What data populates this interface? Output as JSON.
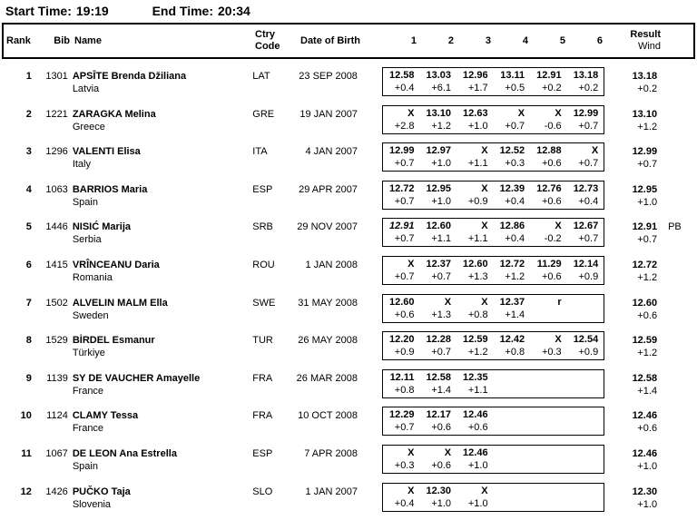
{
  "times": {
    "start_label": "Start Time:",
    "start_value": "19:19",
    "end_label": "End Time:",
    "end_value": "20:34"
  },
  "table": {
    "headers": {
      "rank": "Rank",
      "bib": "Bib",
      "name": "Name",
      "ctry_line1": "Ctry",
      "ctry_line2": "Code",
      "dob": "Date of Birth",
      "attempts": [
        "1",
        "2",
        "3",
        "4",
        "5",
        "6"
      ],
      "result": "Result",
      "wind": "Wind"
    },
    "rows": [
      {
        "rank": "1",
        "bib": "1301",
        "name": "APSĪTE Brenda Džiliana",
        "country": "Latvia",
        "code": "LAT",
        "dob": "23 SEP 2008",
        "attempts": [
          {
            "mark": "12.58",
            "wind": "+0.4"
          },
          {
            "mark": "13.03",
            "wind": "+6.1"
          },
          {
            "mark": "12.96",
            "wind": "+1.7"
          },
          {
            "mark": "13.11",
            "wind": "+0.5"
          },
          {
            "mark": "12.91",
            "wind": "+0.2"
          },
          {
            "mark": "13.18",
            "wind": "+0.2"
          }
        ],
        "result": "13.18",
        "result_wind": "+0.2",
        "remark": ""
      },
      {
        "rank": "2",
        "bib": "1221",
        "name": "ZARAGKA Melina",
        "country": "Greece",
        "code": "GRE",
        "dob": "19 JAN 2007",
        "attempts": [
          {
            "mark": "X",
            "wind": "+2.8"
          },
          {
            "mark": "13.10",
            "wind": "+1.2"
          },
          {
            "mark": "12.63",
            "wind": "+1.0"
          },
          {
            "mark": "X",
            "wind": "+0.7"
          },
          {
            "mark": "X",
            "wind": "-0.6"
          },
          {
            "mark": "12.99",
            "wind": "+0.7"
          }
        ],
        "result": "13.10",
        "result_wind": "+1.2",
        "remark": ""
      },
      {
        "rank": "3",
        "bib": "1296",
        "name": "VALENTI Elisa",
        "country": "Italy",
        "code": "ITA",
        "dob": "4 JAN 2007",
        "attempts": [
          {
            "mark": "12.99",
            "wind": "+0.7"
          },
          {
            "mark": "12.97",
            "wind": "+1.0"
          },
          {
            "mark": "X",
            "wind": "+1.1"
          },
          {
            "mark": "12.52",
            "wind": "+0.3"
          },
          {
            "mark": "12.88",
            "wind": "+0.6"
          },
          {
            "mark": "X",
            "wind": "+0.7"
          }
        ],
        "result": "12.99",
        "result_wind": "+0.7",
        "remark": ""
      },
      {
        "rank": "4",
        "bib": "1063",
        "name": "BARRIOS Maria",
        "country": "Spain",
        "code": "ESP",
        "dob": "29 APR 2007",
        "attempts": [
          {
            "mark": "12.72",
            "wind": "+0.7"
          },
          {
            "mark": "12.95",
            "wind": "+1.0"
          },
          {
            "mark": "X",
            "wind": "+0.9"
          },
          {
            "mark": "12.39",
            "wind": "+0.4"
          },
          {
            "mark": "12.76",
            "wind": "+0.6"
          },
          {
            "mark": "12.73",
            "wind": "+0.4"
          }
        ],
        "result": "12.95",
        "result_wind": "+1.0",
        "remark": ""
      },
      {
        "rank": "5",
        "bib": "1446",
        "name": "NISIĆ Marija",
        "country": "Serbia",
        "code": "SRB",
        "dob": "29 NOV 2007",
        "attempts": [
          {
            "mark": "12.91",
            "wind": "+0.7",
            "italic": true
          },
          {
            "mark": "12.60",
            "wind": "+1.1"
          },
          {
            "mark": "X",
            "wind": "+1.1"
          },
          {
            "mark": "12.86",
            "wind": "+0.4"
          },
          {
            "mark": "X",
            "wind": "-0.2"
          },
          {
            "mark": "12.67",
            "wind": "+0.7"
          }
        ],
        "result": "12.91",
        "result_wind": "+0.7",
        "remark": "PB"
      },
      {
        "rank": "6",
        "bib": "1415",
        "name": "VRÎNCEANU Daria",
        "country": "Romania",
        "code": "ROU",
        "dob": "1 JAN 2008",
        "attempts": [
          {
            "mark": "X",
            "wind": "+0.7"
          },
          {
            "mark": "12.37",
            "wind": "+0.7"
          },
          {
            "mark": "12.60",
            "wind": "+1.3"
          },
          {
            "mark": "12.72",
            "wind": "+1.2"
          },
          {
            "mark": "11.29",
            "wind": "+0.6"
          },
          {
            "mark": "12.14",
            "wind": "+0.9"
          }
        ],
        "result": "12.72",
        "result_wind": "+1.2",
        "remark": ""
      },
      {
        "rank": "7",
        "bib": "1502",
        "name": "ALVELIN MALM Ella",
        "country": "Sweden",
        "code": "SWE",
        "dob": "31 MAY 2008",
        "attempts": [
          {
            "mark": "12.60",
            "wind": "+0.6"
          },
          {
            "mark": "X",
            "wind": "+1.3"
          },
          {
            "mark": "X",
            "wind": "+0.8"
          },
          {
            "mark": "12.37",
            "wind": "+1.4"
          },
          {
            "mark": "r",
            "wind": ""
          },
          {
            "mark": "",
            "wind": ""
          }
        ],
        "result": "12.60",
        "result_wind": "+0.6",
        "remark": ""
      },
      {
        "rank": "8",
        "bib": "1529",
        "name": "BİRDEL Esmanur",
        "country": "Türkiye",
        "code": "TUR",
        "dob": "26 MAY 2008",
        "attempts": [
          {
            "mark": "12.20",
            "wind": "+0.9"
          },
          {
            "mark": "12.28",
            "wind": "+0.7"
          },
          {
            "mark": "12.59",
            "wind": "+1.2"
          },
          {
            "mark": "12.42",
            "wind": "+0.8"
          },
          {
            "mark": "X",
            "wind": "+0.3"
          },
          {
            "mark": "12.54",
            "wind": "+0.9"
          }
        ],
        "result": "12.59",
        "result_wind": "+1.2",
        "remark": ""
      },
      {
        "rank": "9",
        "bib": "1139",
        "name": "SY DE VAUCHER Amayelle",
        "country": "France",
        "code": "FRA",
        "dob": "26 MAR 2008",
        "attempts": [
          {
            "mark": "12.11",
            "wind": "+0.8"
          },
          {
            "mark": "12.58",
            "wind": "+1.4"
          },
          {
            "mark": "12.35",
            "wind": "+1.1"
          },
          {
            "mark": "",
            "wind": ""
          },
          {
            "mark": "",
            "wind": ""
          },
          {
            "mark": "",
            "wind": ""
          }
        ],
        "result": "12.58",
        "result_wind": "+1.4",
        "remark": ""
      },
      {
        "rank": "10",
        "bib": "1124",
        "name": "CLAMY Tessa",
        "country": "France",
        "code": "FRA",
        "dob": "10 OCT 2008",
        "attempts": [
          {
            "mark": "12.29",
            "wind": "+0.7"
          },
          {
            "mark": "12.17",
            "wind": "+0.6"
          },
          {
            "mark": "12.46",
            "wind": "+0.6"
          },
          {
            "mark": "",
            "wind": ""
          },
          {
            "mark": "",
            "wind": ""
          },
          {
            "mark": "",
            "wind": ""
          }
        ],
        "result": "12.46",
        "result_wind": "+0.6",
        "remark": ""
      },
      {
        "rank": "11",
        "bib": "1067",
        "name": "DE LEON Ana Estrella",
        "country": "Spain",
        "code": "ESP",
        "dob": "7 APR 2008",
        "attempts": [
          {
            "mark": "X",
            "wind": "+0.3"
          },
          {
            "mark": "X",
            "wind": "+0.6"
          },
          {
            "mark": "12.46",
            "wind": "+1.0"
          },
          {
            "mark": "",
            "wind": ""
          },
          {
            "mark": "",
            "wind": ""
          },
          {
            "mark": "",
            "wind": ""
          }
        ],
        "result": "12.46",
        "result_wind": "+1.0",
        "remark": ""
      },
      {
        "rank": "12",
        "bib": "1426",
        "name": "PUČKO Taja",
        "country": "Slovenia",
        "code": "SLO",
        "dob": "1 JAN 2007",
        "attempts": [
          {
            "mark": "X",
            "wind": "+0.4"
          },
          {
            "mark": "12.30",
            "wind": "+1.0"
          },
          {
            "mark": "X",
            "wind": "+1.0"
          },
          {
            "mark": "",
            "wind": ""
          },
          {
            "mark": "",
            "wind": ""
          },
          {
            "mark": "",
            "wind": ""
          }
        ],
        "result": "12.30",
        "result_wind": "+1.0",
        "remark": ""
      }
    ]
  }
}
